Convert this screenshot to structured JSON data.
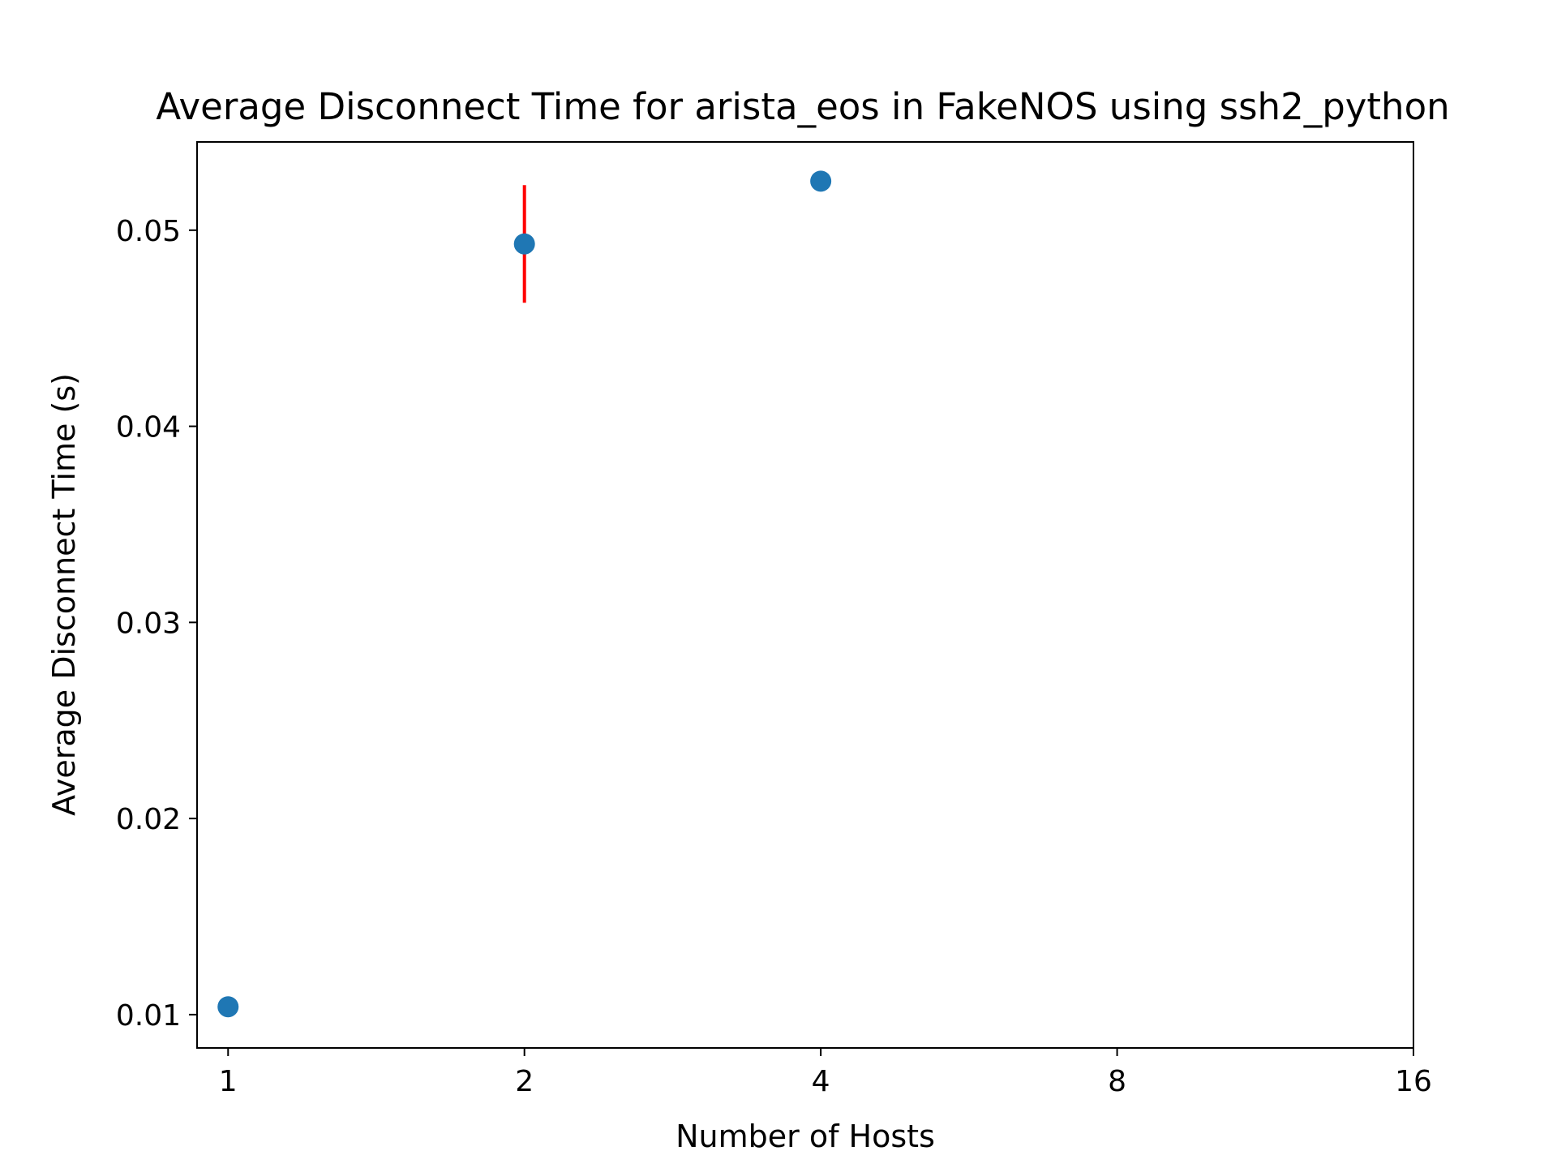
{
  "chart_data": {
    "type": "scatter",
    "title": "Average Disconnect Time for arista_eos in FakeNOS using ssh2_python",
    "xlabel": "Number of Hosts",
    "ylabel": "Average Disconnect Time (s)",
    "x_scale": "log2",
    "x_ticks": [
      1,
      2,
      4,
      8,
      16
    ],
    "x_tick_labels": [
      "1",
      "2",
      "4",
      "8",
      "16"
    ],
    "xlim": [
      0.93,
      16
    ],
    "y_ticks": [
      0.01,
      0.02,
      0.03,
      0.04,
      0.05
    ],
    "y_tick_labels": [
      "0.01",
      "0.02",
      "0.03",
      "0.04",
      "0.05"
    ],
    "ylim": [
      0.0083,
      0.0545
    ],
    "grid": false,
    "legend": "none",
    "series": [
      {
        "color": "#1f77b4",
        "error_color": "#ff0000",
        "points": [
          {
            "x": 1,
            "y": 0.0104,
            "err": 0
          },
          {
            "x": 2,
            "y": 0.0493,
            "err": 0.003
          },
          {
            "x": 4,
            "y": 0.0525,
            "err": 0
          }
        ]
      }
    ]
  }
}
